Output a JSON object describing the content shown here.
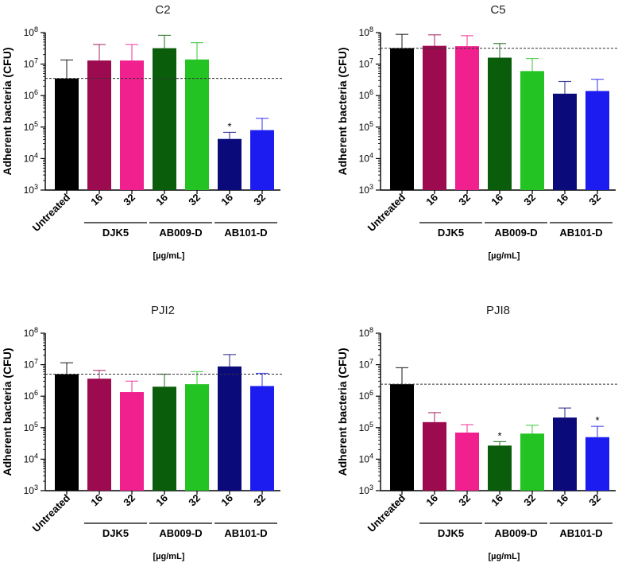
{
  "figure": {
    "background": "#ffffff"
  },
  "chart_data": [
    {
      "type": "bar",
      "title": "C2",
      "ylabel": "Adherent bacteria (CFU)",
      "yscale": "log",
      "ylim": [
        1000,
        100000000
      ],
      "yticks": [
        1000,
        10000,
        100000,
        1000000,
        10000000,
        100000000
      ],
      "ytick_labels": [
        {
          "base": "10",
          "exp": "3"
        },
        {
          "base": "10",
          "exp": "4"
        },
        {
          "base": "10",
          "exp": "5"
        },
        {
          "base": "10",
          "exp": "6"
        },
        {
          "base": "10",
          "exp": "7"
        },
        {
          "base": "10",
          "exp": "8"
        }
      ],
      "categories": [
        "Untreated",
        "16",
        "32",
        "16",
        "32",
        "16",
        "32"
      ],
      "groups": [
        {
          "label": "DJK5",
          "from": 1,
          "to": 2
        },
        {
          "label": "AB009-D",
          "from": 3,
          "to": 4
        },
        {
          "label": "AB101-D",
          "from": 5,
          "to": 6
        }
      ],
      "unit_label": "[µg/mL]",
      "values": [
        3500000,
        13000000,
        13000000,
        32000000,
        14000000,
        42000,
        80000
      ],
      "error_upper": [
        13500000,
        42000000,
        42000000,
        82000000,
        48000000,
        68000,
        190000
      ],
      "colors": [
        "#000000",
        "#9c0b4f",
        "#f0208f",
        "#0a5d0a",
        "#22c322",
        "#0a0a7a",
        "#1c1cf0"
      ],
      "significance": [
        "",
        "",
        "",
        "",
        "",
        "*",
        ""
      ],
      "reference_line": 3500000
    },
    {
      "type": "bar",
      "title": "C5",
      "ylabel": "Adherent bacteria (CFU)",
      "yscale": "log",
      "ylim": [
        1000,
        100000000
      ],
      "yticks": [
        1000,
        10000,
        100000,
        1000000,
        10000000,
        100000000
      ],
      "ytick_labels": [
        {
          "base": "10",
          "exp": "3"
        },
        {
          "base": "10",
          "exp": "4"
        },
        {
          "base": "10",
          "exp": "5"
        },
        {
          "base": "10",
          "exp": "6"
        },
        {
          "base": "10",
          "exp": "7"
        },
        {
          "base": "10",
          "exp": "8"
        }
      ],
      "categories": [
        "Untreated",
        "16",
        "32",
        "16",
        "32",
        "16",
        "32"
      ],
      "groups": [
        {
          "label": "DJK5",
          "from": 1,
          "to": 2
        },
        {
          "label": "AB009-D",
          "from": 3,
          "to": 4
        },
        {
          "label": "AB101-D",
          "from": 5,
          "to": 6
        }
      ],
      "unit_label": "[µg/mL]",
      "values": [
        32000000,
        38000000,
        37000000,
        16000000,
        6000000,
        1150000,
        1400000
      ],
      "error_upper": [
        88000000,
        85000000,
        80000000,
        45000000,
        15000000,
        2800000,
        3300000
      ],
      "colors": [
        "#000000",
        "#9c0b4f",
        "#f0208f",
        "#0a5d0a",
        "#22c322",
        "#0a0a7a",
        "#1c1cf0"
      ],
      "significance": [
        "",
        "",
        "",
        "",
        "",
        "",
        ""
      ],
      "reference_line": 32000000
    },
    {
      "type": "bar",
      "title": "PJI2",
      "ylabel": "Adherent bacteria (CFU)",
      "yscale": "log",
      "ylim": [
        1000,
        100000000
      ],
      "yticks": [
        1000,
        10000,
        100000,
        1000000,
        10000000,
        100000000
      ],
      "ytick_labels": [
        {
          "base": "10",
          "exp": "3"
        },
        {
          "base": "10",
          "exp": "4"
        },
        {
          "base": "10",
          "exp": "5"
        },
        {
          "base": "10",
          "exp": "6"
        },
        {
          "base": "10",
          "exp": "7"
        },
        {
          "base": "10",
          "exp": "8"
        }
      ],
      "categories": [
        "Untreated",
        "16",
        "32",
        "16",
        "32",
        "16",
        "32"
      ],
      "groups": [
        {
          "label": "DJK5",
          "from": 1,
          "to": 2
        },
        {
          "label": "AB009-D",
          "from": 3,
          "to": 4
        },
        {
          "label": "AB101-D",
          "from": 5,
          "to": 6
        }
      ],
      "unit_label": "[µg/mL]",
      "values": [
        5000000,
        3600000,
        1350000,
        2000000,
        2400000,
        8800000,
        2100000
      ],
      "error_upper": [
        11500000,
        6600000,
        3000000,
        5000000,
        6000000,
        21000000,
        5300000
      ],
      "colors": [
        "#000000",
        "#9c0b4f",
        "#f0208f",
        "#0a5d0a",
        "#22c322",
        "#0a0a7a",
        "#1c1cf0"
      ],
      "significance": [
        "",
        "",
        "",
        "",
        "",
        "",
        ""
      ],
      "reference_line": 5000000
    },
    {
      "type": "bar",
      "title": "PJI8",
      "ylabel": "Adherent bacteria (CFU)",
      "yscale": "log",
      "ylim": [
        1000,
        100000000
      ],
      "yticks": [
        1000,
        10000,
        100000,
        1000000,
        10000000,
        100000000
      ],
      "ytick_labels": [
        {
          "base": "10",
          "exp": "3"
        },
        {
          "base": "10",
          "exp": "4"
        },
        {
          "base": "10",
          "exp": "5"
        },
        {
          "base": "10",
          "exp": "6"
        },
        {
          "base": "10",
          "exp": "7"
        },
        {
          "base": "10",
          "exp": "8"
        }
      ],
      "categories": [
        "Untreated",
        "16",
        "32",
        "16",
        "32",
        "16",
        "32"
      ],
      "groups": [
        {
          "label": "DJK5",
          "from": 1,
          "to": 2
        },
        {
          "label": "AB009-D",
          "from": 3,
          "to": 4
        },
        {
          "label": "AB101-D",
          "from": 5,
          "to": 6
        }
      ],
      "unit_label": "[µg/mL]",
      "values": [
        2400000,
        150000,
        70000,
        27000,
        65000,
        210000,
        50000
      ],
      "error_upper": [
        8000000,
        300000,
        125000,
        36000,
        120000,
        420000,
        110000
      ],
      "colors": [
        "#000000",
        "#9c0b4f",
        "#f0208f",
        "#0a5d0a",
        "#22c322",
        "#0a0a7a",
        "#1c1cf0"
      ],
      "significance": [
        "",
        "",
        "",
        "*",
        "",
        "",
        "*"
      ],
      "reference_line": 2400000
    }
  ]
}
